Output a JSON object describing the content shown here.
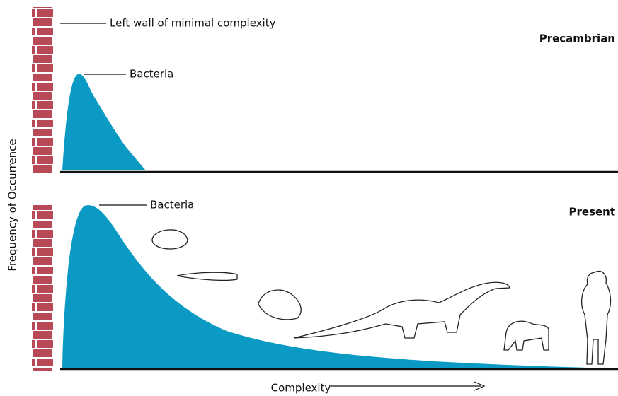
{
  "wall_label": "Left wall of minimal complexity",
  "panels": [
    {
      "label": "Precambrian",
      "annotation": "Bacteria"
    },
    {
      "label": "Present",
      "annotation": "Bacteria"
    }
  ],
  "y_axis_label": "Frequency of Occurrence",
  "x_axis_label": "Complexity"
}
